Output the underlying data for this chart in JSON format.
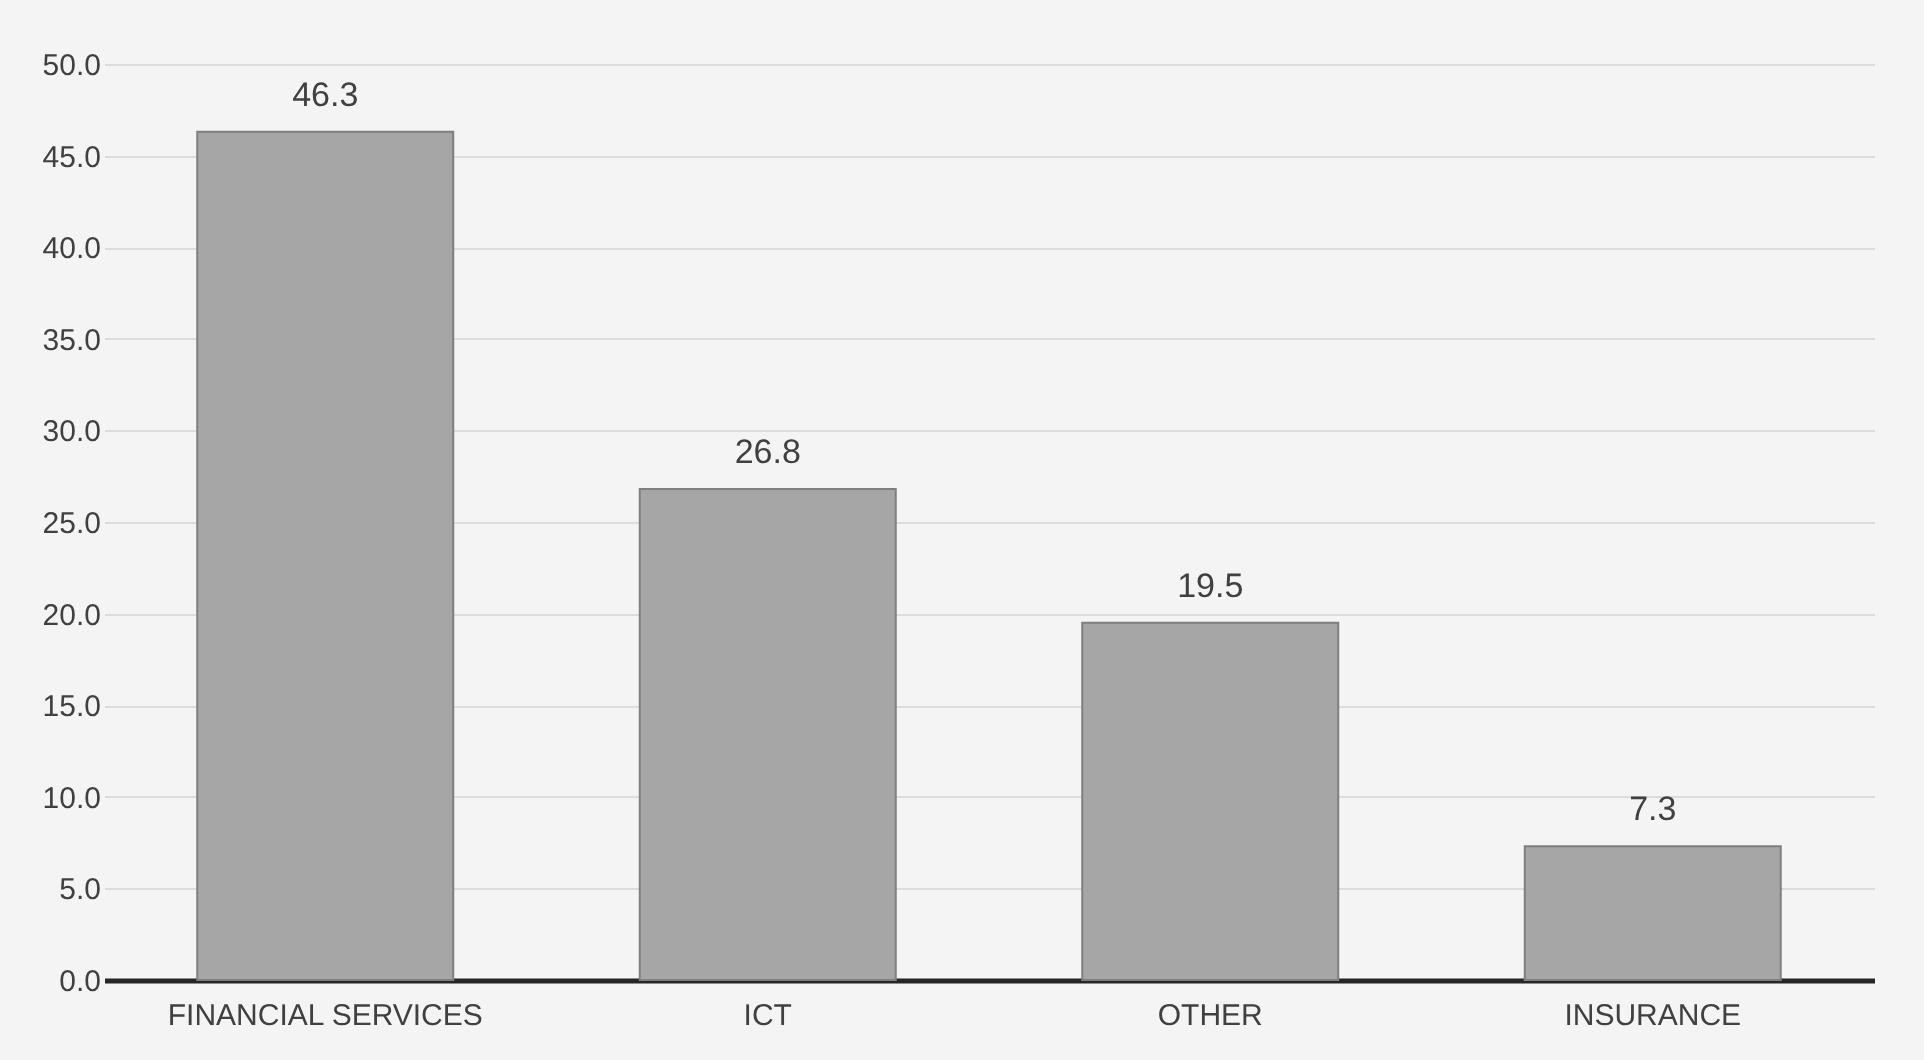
{
  "chart_data": {
    "type": "bar",
    "categories": [
      "FINANCIAL SERVICES",
      "ICT",
      "OTHER",
      "INSURANCE"
    ],
    "values": [
      46.3,
      26.8,
      19.5,
      7.3
    ],
    "color": "#a6a6a6",
    "ylim": [
      0,
      50
    ],
    "yticks": [
      {
        "value": 0,
        "label": "0.0"
      },
      {
        "value": 5,
        "label": "5.0"
      },
      {
        "value": 10,
        "label": "10.0"
      },
      {
        "value": 15,
        "label": "15.0"
      },
      {
        "value": 20,
        "label": "20.0"
      },
      {
        "value": 25,
        "label": "25.0"
      },
      {
        "value": 30,
        "label": "30.0"
      },
      {
        "value": 35,
        "label": "35.0"
      },
      {
        "value": 40,
        "label": "40.0"
      },
      {
        "value": 45,
        "label": "45.0"
      },
      {
        "value": 50,
        "label": "50.0"
      }
    ],
    "grid": "y",
    "data_labels": true
  }
}
